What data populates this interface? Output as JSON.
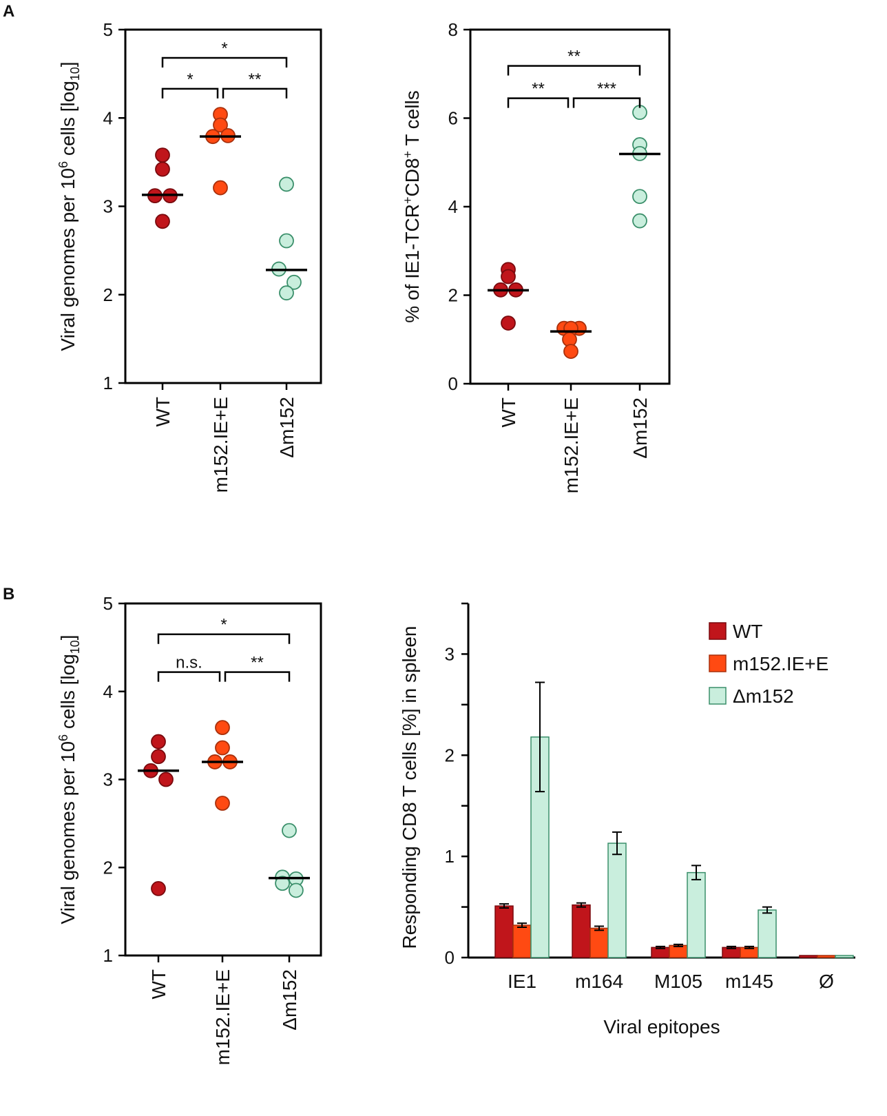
{
  "panel_labels": {
    "a": "A",
    "b": "B"
  },
  "colors": {
    "WT": "#c0151b",
    "m152IE": "#ff4a12",
    "dm152": "#c9eedd",
    "dm152_stroke": "#3a8f6a",
    "axis": "#000000"
  },
  "chart_data": [
    {
      "id": "A1",
      "type": "scatter",
      "title": "",
      "ylabel": "Viral genomes per 10",
      "ylabel_sup": "6",
      "ylabel_tail": " cells [log",
      "ylabel_sub": "10",
      "ylabel_end": "]",
      "ylim": [
        1,
        5
      ],
      "yticks": [
        "1",
        "2",
        "3",
        "4",
        "5"
      ],
      "ytick_values": [
        1,
        2,
        3,
        4,
        5
      ],
      "categories": [
        "WT",
        "m152.IE+E",
        "Δm152"
      ],
      "series": [
        {
          "name": "WT",
          "points": [
            3.58,
            3.42,
            3.12,
            3.12,
            2.83
          ],
          "median": 3.13
        },
        {
          "name": "m152.IE+E",
          "points": [
            4.04,
            3.92,
            3.79,
            3.8,
            3.21
          ],
          "median": 3.79
        },
        {
          "name": "Δm152",
          "points": [
            3.25,
            2.61,
            2.29,
            2.14,
            2.02
          ],
          "median": 2.28
        }
      ],
      "significance": [
        {
          "from": 0,
          "to": 2,
          "label": "*",
          "y": 4.68
        },
        {
          "from": 0,
          "to": 1,
          "label": "*",
          "y": 4.33
        },
        {
          "from": 1,
          "to": 2,
          "label": "**",
          "y": 4.33
        }
      ]
    },
    {
      "id": "A2",
      "type": "scatter",
      "title": "",
      "ylabel": "% of IE1-TCR",
      "ylabel_sup": "+",
      "ylabel_tail": "CD8",
      "ylabel_sup2": "+",
      "ylabel_end": " T cells",
      "ylim": [
        0,
        8
      ],
      "yticks": [
        "0",
        "2",
        "4",
        "6",
        "8"
      ],
      "ytick_values": [
        0,
        2,
        4,
        6,
        8
      ],
      "categories": [
        "WT",
        "m152.IE+E",
        "Δm152"
      ],
      "series": [
        {
          "name": "WT",
          "points": [
            2.58,
            2.42,
            2.12,
            2.12,
            1.37
          ],
          "median": 2.11
        },
        {
          "name": "m152.IE+E",
          "points": [
            1.25,
            1.25,
            1.25,
            1.0,
            0.73
          ],
          "median": 1.18
        },
        {
          "name": "Δm152",
          "points": [
            6.13,
            5.4,
            5.2,
            4.23,
            3.68
          ],
          "median": 5.19
        }
      ],
      "significance": [
        {
          "from": 0,
          "to": 2,
          "label": "**",
          "y": 7.18
        },
        {
          "from": 0,
          "to": 1,
          "label": "**",
          "y": 6.45
        },
        {
          "from": 1,
          "to": 2,
          "label": "***",
          "y": 6.45
        }
      ]
    },
    {
      "id": "B1",
      "type": "scatter",
      "title": "",
      "ylabel": "Viral genomes per 10",
      "ylabel_sup": "6",
      "ylabel_tail": " cells [log",
      "ylabel_sub": "10",
      "ylabel_end": "]",
      "ylim": [
        1,
        5
      ],
      "yticks": [
        "1",
        "2",
        "3",
        "4",
        "5"
      ],
      "ytick_values": [
        1,
        2,
        3,
        4,
        5
      ],
      "categories": [
        "WT",
        "m152.IE+E",
        "Δm152"
      ],
      "series": [
        {
          "name": "WT",
          "points": [
            3.43,
            3.26,
            3.1,
            3.0,
            1.76
          ],
          "median": 3.1
        },
        {
          "name": "m152.IE+E",
          "points": [
            3.59,
            3.36,
            3.2,
            3.2,
            2.73
          ],
          "median": 3.2
        },
        {
          "name": "Δm152",
          "points": [
            2.42,
            1.89,
            1.87,
            1.82,
            1.74
          ],
          "median": 1.88
        }
      ],
      "significance": [
        {
          "from": 0,
          "to": 2,
          "label": "*",
          "y": 4.65
        },
        {
          "from": 0,
          "to": 1,
          "label": "n.s.",
          "y": 4.22
        },
        {
          "from": 1,
          "to": 2,
          "label": "**",
          "y": 4.22
        }
      ]
    },
    {
      "id": "B2",
      "type": "bar",
      "title": "",
      "ylabel": "Responding CD8 T cells [%] in spleen",
      "xlabel": "Viral epitopes",
      "ylim": [
        0,
        3.5
      ],
      "yticks": [
        "0",
        "1",
        "2",
        "3"
      ],
      "ytick_values": [
        0,
        1,
        2,
        3
      ],
      "categories": [
        "IE1",
        "m164",
        "M105",
        "m145",
        "Ø"
      ],
      "legend_position": "top-right",
      "series": [
        {
          "name": "WT",
          "values": [
            0.51,
            0.52,
            0.1,
            0.1,
            0.0
          ],
          "errors": [
            0.02,
            0.02,
            0.01,
            0.01,
            0.0
          ]
        },
        {
          "name": "m152.IE+E",
          "values": [
            0.32,
            0.29,
            0.12,
            0.1,
            0.0
          ],
          "errors": [
            0.02,
            0.02,
            0.01,
            0.01,
            0.0
          ]
        },
        {
          "name": "Δm152",
          "values": [
            2.18,
            1.13,
            0.84,
            0.47,
            0.0
          ],
          "errors": [
            0.54,
            0.11,
            0.07,
            0.03,
            0.0
          ]
        }
      ]
    }
  ]
}
